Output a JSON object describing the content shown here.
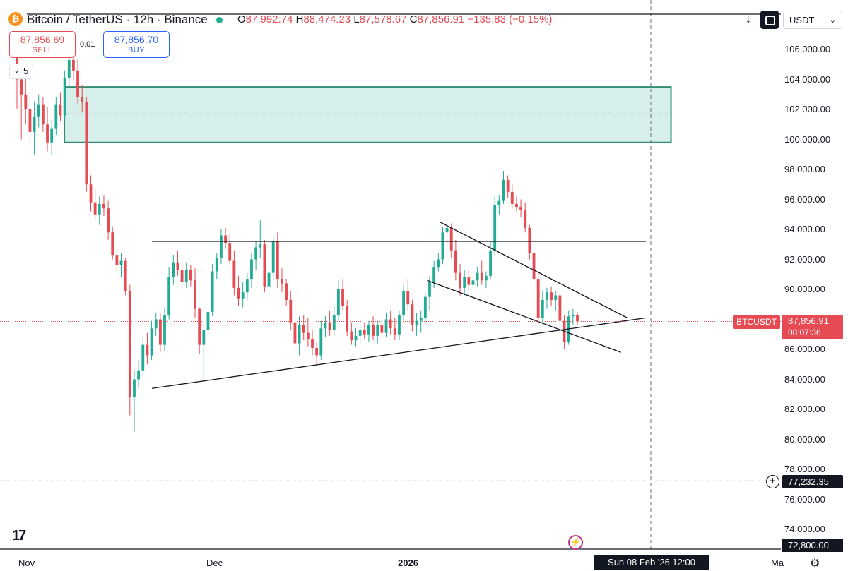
{
  "header": {
    "symbol": "Bitcoin / TetherUS · 12h · Binance",
    "ohlc": {
      "o_label": "O",
      "o": "87,992.74",
      "h_label": "H",
      "h": "88,474.23",
      "l_label": "L",
      "l": "87,578.67",
      "c_label": "C",
      "c": "87,856.91",
      "change": "−135.83 (−0.15%)"
    }
  },
  "trade": {
    "sell_price": "87,856.69",
    "sell_label": "SELL",
    "buy_price": "87,856.70",
    "buy_label": "BUY",
    "spread": "0.01"
  },
  "indicator_toggle": {
    "count": "5"
  },
  "toolbar": {
    "currency": "USDT",
    "down_icon": "down-arrow-icon",
    "square_icon": "square-icon"
  },
  "price_axis": {
    "ticks": [
      "106,000.00",
      "104,000.00",
      "102,000.00",
      "100,000.00",
      "98,000.00",
      "96,000.00",
      "94,000.00",
      "92,000.00",
      "90,000.00",
      "86,000.00",
      "84,000.00",
      "82,000.00",
      "80,000.00",
      "78,000.00",
      "76,000.00",
      "74,000.00"
    ]
  },
  "time_axis": {
    "ticks": [
      "Nov",
      "Dec",
      "2026",
      "Ma"
    ]
  },
  "markers": {
    "current_symbol": "BTCUSDT",
    "current_price": "87,856.91",
    "countdown": "08:07:36",
    "crosshair_price": "77,232.35",
    "low_price": "72,800.00",
    "crosshair_date": "Sun 08 Feb '26   12:00"
  },
  "colors": {
    "up": "#22ab94",
    "down": "#e64a52",
    "zone_fill": "#d7efea",
    "zone_border": "#2e8f75",
    "line": "#131722"
  },
  "chart_data": {
    "type": "candlestick",
    "symbol": "BTCUSDT",
    "interval": "12h",
    "ylim": [
      72800,
      107400
    ],
    "candles_ohlc": [
      [
        107000,
        107200,
        102000,
        104000
      ],
      [
        104000,
        105000,
        100000,
        103000
      ],
      [
        103000,
        104500,
        101000,
        102000
      ],
      [
        102000,
        103500,
        99500,
        100500
      ],
      [
        100500,
        102500,
        99000,
        101500
      ],
      [
        101500,
        103000,
        100800,
        102300
      ],
      [
        102300,
        102800,
        100500,
        101000
      ],
      [
        101000,
        102200,
        99200,
        99800
      ],
      [
        99800,
        101300,
        99000,
        100700
      ],
      [
        100700,
        102800,
        100300,
        102300
      ],
      [
        102300,
        103100,
        101200,
        101600
      ],
      [
        101600,
        104600,
        101300,
        104100
      ],
      [
        104100,
        105800,
        103500,
        105300
      ],
      [
        105300,
        106100,
        103900,
        104600
      ],
      [
        104600,
        105400,
        102300,
        102800
      ],
      [
        102800,
        103600,
        101800,
        102500
      ],
      [
        102500,
        102800,
        96500,
        97000
      ],
      [
        97000,
        97600,
        95200,
        95800
      ],
      [
        95800,
        96700,
        94600,
        95000
      ],
      [
        95000,
        96200,
        94300,
        95700
      ],
      [
        95700,
        96300,
        94900,
        95400
      ],
      [
        95400,
        95900,
        93300,
        93800
      ],
      [
        93800,
        94200,
        92000,
        92300
      ],
      [
        92300,
        92800,
        91200,
        91600
      ],
      [
        91600,
        92400,
        90800,
        91900
      ],
      [
        91900,
        92100,
        89600,
        89900
      ],
      [
        89900,
        90300,
        81600,
        82800
      ],
      [
        82800,
        84600,
        80500,
        84000
      ],
      [
        84000,
        85200,
        83400,
        84600
      ],
      [
        84600,
        86800,
        84300,
        86300
      ],
      [
        86300,
        87100,
        85000,
        85600
      ],
      [
        85600,
        87900,
        85300,
        87400
      ],
      [
        87400,
        88400,
        86900,
        88000
      ],
      [
        88000,
        88400,
        85800,
        86300
      ],
      [
        86300,
        88800,
        85900,
        88300
      ],
      [
        88300,
        91500,
        88000,
        90800
      ],
      [
        90800,
        92300,
        90300,
        91800
      ],
      [
        91800,
        92600,
        90900,
        91300
      ],
      [
        91300,
        91900,
        89900,
        90500
      ],
      [
        90500,
        91800,
        90100,
        91300
      ],
      [
        91300,
        91600,
        90200,
        90600
      ],
      [
        90600,
        91400,
        88100,
        88700
      ],
      [
        88700,
        88800,
        85700,
        86300
      ],
      [
        86300,
        87700,
        84000,
        87300
      ],
      [
        87300,
        88900,
        86900,
        88500
      ],
      [
        88500,
        91700,
        88200,
        91200
      ],
      [
        91200,
        92400,
        90700,
        92100
      ],
      [
        92100,
        94000,
        91700,
        93600
      ],
      [
        93600,
        94100,
        92700,
        93100
      ],
      [
        93100,
        93700,
        91600,
        91900
      ],
      [
        91900,
        92600,
        89600,
        90100
      ],
      [
        90100,
        90900,
        88900,
        89400
      ],
      [
        89400,
        90500,
        88800,
        89800
      ],
      [
        89800,
        91100,
        89300,
        90700
      ],
      [
        90700,
        92400,
        90100,
        92000
      ],
      [
        92000,
        93200,
        91300,
        92800
      ],
      [
        92800,
        94600,
        92100,
        93000
      ],
      [
        93000,
        93300,
        89800,
        90200
      ],
      [
        90200,
        91600,
        89600,
        91100
      ],
      [
        91100,
        93600,
        90600,
        93200
      ],
      [
        93200,
        93800,
        90100,
        90700
      ],
      [
        90700,
        91400,
        89800,
        90400
      ],
      [
        90400,
        90700,
        88900,
        89300
      ],
      [
        89300,
        89900,
        87300,
        87800
      ],
      [
        87800,
        88300,
        85900,
        86400
      ],
      [
        86400,
        88200,
        85600,
        87600
      ],
      [
        87600,
        88300,
        86600,
        87100
      ],
      [
        87100,
        88100,
        86200,
        86700
      ],
      [
        86700,
        87300,
        85600,
        86100
      ],
      [
        86100,
        86500,
        84900,
        85600
      ],
      [
        85600,
        87900,
        85300,
        87400
      ],
      [
        87400,
        88200,
        86800,
        87800
      ],
      [
        87800,
        88600,
        86900,
        87300
      ],
      [
        87300,
        88900,
        86900,
        88300
      ],
      [
        88300,
        90600,
        87900,
        90000
      ],
      [
        90000,
        90700,
        88600,
        88900
      ],
      [
        88900,
        89300,
        86900,
        87200
      ],
      [
        87200,
        87800,
        86300,
        86600
      ],
      [
        86600,
        87400,
        86200,
        86900
      ],
      [
        86900,
        87700,
        86400,
        87300
      ],
      [
        87300,
        87800,
        86700,
        87000
      ],
      [
        87000,
        87900,
        86500,
        87600
      ],
      [
        87600,
        88200,
        86600,
        86900
      ],
      [
        86900,
        87900,
        86400,
        87600
      ],
      [
        87600,
        88000,
        86700,
        87100
      ],
      [
        87100,
        88400,
        86800,
        88000
      ],
      [
        88000,
        88600,
        87000,
        87400
      ],
      [
        87400,
        88100,
        86600,
        87000
      ],
      [
        87000,
        88600,
        86600,
        88300
      ],
      [
        88300,
        90300,
        87900,
        89900
      ],
      [
        89900,
        90700,
        88600,
        89000
      ],
      [
        89000,
        89300,
        87200,
        87600
      ],
      [
        87600,
        88400,
        86900,
        87900
      ],
      [
        87900,
        88600,
        87100,
        88100
      ],
      [
        88100,
        89800,
        87700,
        89500
      ],
      [
        89500,
        90900,
        88600,
        90500
      ],
      [
        90500,
        91900,
        90100,
        91500
      ],
      [
        91500,
        92400,
        91200,
        92000
      ],
      [
        92000,
        94200,
        91700,
        93800
      ],
      [
        93800,
        94900,
        92900,
        94100
      ],
      [
        94100,
        94400,
        92100,
        92600
      ],
      [
        92600,
        93300,
        90600,
        91100
      ],
      [
        91100,
        91700,
        89600,
        90100
      ],
      [
        90100,
        91300,
        89600,
        90800
      ],
      [
        90800,
        91300,
        89900,
        90300
      ],
      [
        90300,
        91100,
        89900,
        90600
      ],
      [
        90600,
        91500,
        90200,
        91100
      ],
      [
        91100,
        91900,
        90300,
        90600
      ],
      [
        90600,
        91200,
        90100,
        90900
      ],
      [
        90900,
        93200,
        90700,
        92600
      ],
      [
        92600,
        96200,
        92300,
        95600
      ],
      [
        95600,
        96300,
        95000,
        95900
      ],
      [
        95900,
        97900,
        95700,
        97300
      ],
      [
        97300,
        97600,
        96100,
        96500
      ],
      [
        96500,
        97000,
        95400,
        95700
      ],
      [
        95700,
        96200,
        95200,
        95500
      ],
      [
        95500,
        96000,
        94800,
        95300
      ],
      [
        95300,
        95800,
        93800,
        94100
      ],
      [
        94100,
        94300,
        92000,
        92400
      ],
      [
        92400,
        92900,
        90300,
        90700
      ],
      [
        90700,
        91100,
        87600,
        88100
      ],
      [
        88100,
        89900,
        87700,
        89300
      ],
      [
        89300,
        90100,
        88700,
        89800
      ],
      [
        89800,
        90200,
        88900,
        89300
      ],
      [
        89300,
        89900,
        88600,
        89600
      ],
      [
        89600,
        89700,
        87500,
        87900
      ],
      [
        87900,
        88300,
        86000,
        86500
      ],
      [
        86500,
        88600,
        86300,
        88200
      ],
      [
        88200,
        88700,
        87600,
        88300
      ],
      [
        88300,
        88500,
        87600,
        87857
      ]
    ],
    "trendlines": [
      {
        "name": "resistance",
        "points": [
          [
            "2025-11-21",
            93200
          ],
          [
            "2026-02-08",
            93200
          ]
        ]
      },
      {
        "name": "support",
        "points": [
          [
            "2025-11-21",
            83400
          ],
          [
            "2026-02-08",
            88100
          ]
        ]
      },
      {
        "name": "channel-top",
        "points": [
          [
            "2026-01-06",
            94500
          ],
          [
            "2026-02-05",
            88100
          ]
        ]
      },
      {
        "name": "channel-bottom",
        "points": [
          [
            "2026-01-04",
            90600
          ],
          [
            "2026-02-04",
            85800
          ]
        ]
      }
    ],
    "zone": {
      "name": "supply-zone",
      "y_top": 103500,
      "y_bottom": 99800,
      "midline": 101700,
      "x_start": "2025-11-07",
      "x_end": "2026-02-12"
    },
    "current_price": 87856.91,
    "crosshair": {
      "price": 77232.35,
      "date": "2026-02-08 12:00"
    }
  }
}
